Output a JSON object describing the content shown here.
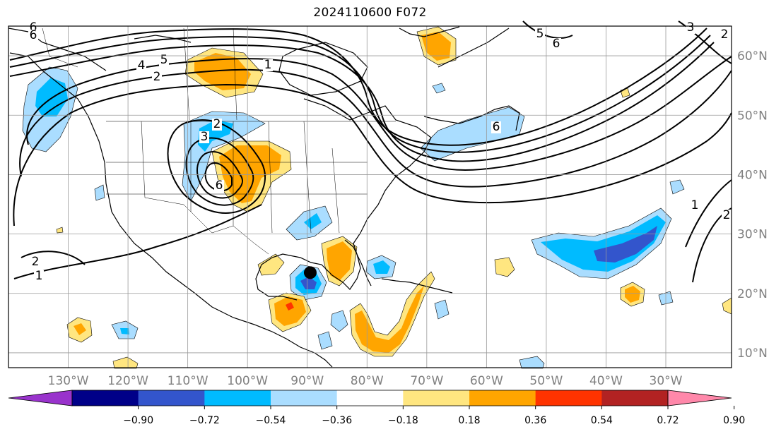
{
  "title": "2024110600 F072",
  "map": {
    "lon_min": -140,
    "lon_max": -19,
    "lat_min": 7.5,
    "lat_max": 65,
    "longitude_labels": [
      {
        "lon": -130,
        "text": "130°W"
      },
      {
        "lon": -120,
        "text": "120°W"
      },
      {
        "lon": -110,
        "text": "110°W"
      },
      {
        "lon": -100,
        "text": "100°W"
      },
      {
        "lon": -90,
        "text": "90°W"
      },
      {
        "lon": -80,
        "text": "80°W"
      },
      {
        "lon": -70,
        "text": "70°W"
      },
      {
        "lon": -60,
        "text": "60°W"
      },
      {
        "lon": -50,
        "text": "50°W"
      },
      {
        "lon": -40,
        "text": "40°W"
      },
      {
        "lon": -30,
        "text": "30°W"
      }
    ],
    "latitude_labels": [
      {
        "lat": 60,
        "text": "60°N"
      },
      {
        "lat": 50,
        "text": "50°N"
      },
      {
        "lat": 40,
        "text": "40°N"
      },
      {
        "lat": 30,
        "text": "30°N"
      },
      {
        "lat": 20,
        "text": "20°N"
      },
      {
        "lat": 10,
        "text": "10°N"
      }
    ],
    "grid": true,
    "marker": {
      "lon": -89.5,
      "lat": 23.5,
      "color": "#000000"
    }
  },
  "contour_labels": [
    "6",
    "6",
    "5",
    "4",
    "2",
    "1",
    "2",
    "3",
    "6",
    "5",
    "6",
    "3",
    "2",
    "1",
    "2",
    "2",
    "1",
    "6"
  ],
  "colorbar": {
    "tick_labels": [
      "−0.90",
      "−0.72",
      "−0.54",
      "−0.36",
      "−0.18",
      "0.18",
      "0.36",
      "0.54",
      "0.72",
      "0.90"
    ],
    "colors": [
      "#9933cc",
      "#000088",
      "#3355cc",
      "#00bbff",
      "#aaddff",
      "#ffffff",
      "#ffe680",
      "#ffa500",
      "#ff3300",
      "#b22222",
      "#ff88aa"
    ],
    "extend": "both"
  },
  "fill_colors": {
    "light_blue": "#aaddff",
    "blue": "#00bbff",
    "mid_blue": "#3355cc",
    "light_yellow": "#ffe680",
    "orange": "#ffa500",
    "red_orange": "#ff3300"
  }
}
